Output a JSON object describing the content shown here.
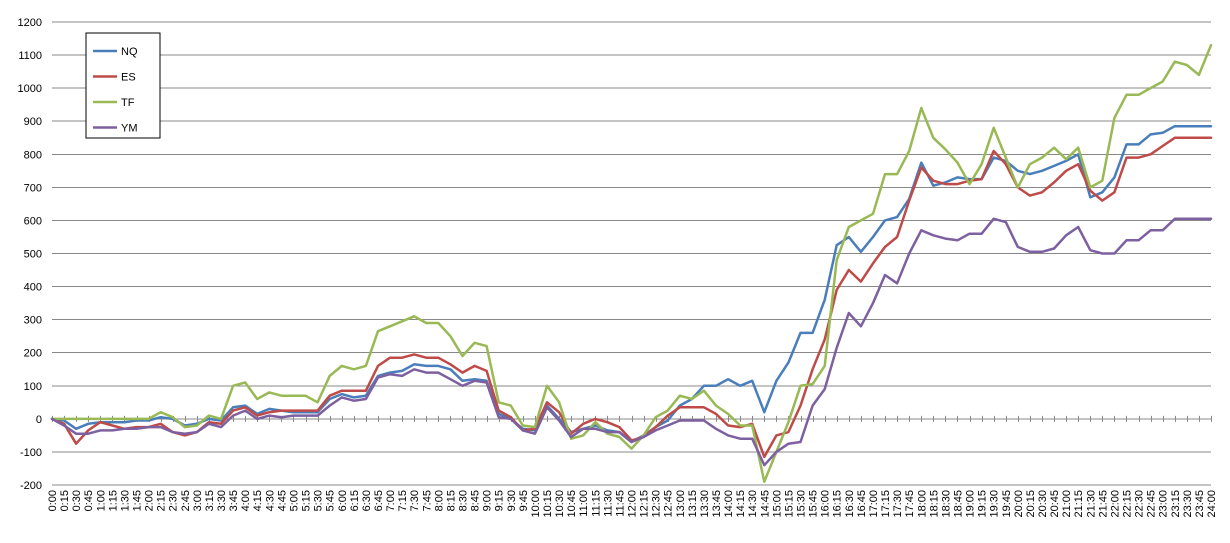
{
  "chart_data": {
    "type": "line",
    "title": "",
    "xlabel": "",
    "ylabel": "",
    "ylim": [
      -200,
      1200
    ],
    "y_ticks": [
      -200,
      -100,
      0,
      100,
      200,
      300,
      400,
      500,
      600,
      700,
      800,
      900,
      1000,
      1100,
      1200
    ],
    "grid": "horizontal",
    "legend": "top-left",
    "categories": [
      "0:00",
      "0:15",
      "0:30",
      "0:45",
      "1:00",
      "1:15",
      "1:30",
      "1:45",
      "2:00",
      "2:15",
      "2:30",
      "2:45",
      "3:00",
      "3:15",
      "3:30",
      "3:45",
      "4:00",
      "4:15",
      "4:30",
      "4:45",
      "5:00",
      "5:15",
      "5:30",
      "5:45",
      "6:00",
      "6:15",
      "6:30",
      "6:45",
      "7:00",
      "7:15",
      "7:30",
      "7:45",
      "8:00",
      "8:15",
      "8:30",
      "8:45",
      "9:00",
      "9:15",
      "9:30",
      "9:45",
      "10:00",
      "10:15",
      "10:30",
      "10:45",
      "11:00",
      "11:15",
      "11:30",
      "11:45",
      "12:00",
      "12:15",
      "12:30",
      "12:45",
      "13:00",
      "13:15",
      "13:30",
      "13:45",
      "14:00",
      "14:15",
      "14:30",
      "14:45",
      "15:00",
      "15:15",
      "15:30",
      "15:45",
      "16:00",
      "16:15",
      "16:30",
      "16:45",
      "17:00",
      "17:15",
      "17:30",
      "17:45",
      "18:00",
      "18:15",
      "18:30",
      "18:45",
      "19:00",
      "19:15",
      "19:30",
      "19:45",
      "20:00",
      "20:15",
      "20:30",
      "20:45",
      "21:00",
      "21:15",
      "21:30",
      "21:45",
      "22:00",
      "22:15",
      "22:30",
      "22:45",
      "23:00",
      "23:15",
      "23:30",
      "23:45",
      "24:00"
    ],
    "series": [
      {
        "name": "NQ",
        "color": "#4a7ebb",
        "values": [
          0,
          -5,
          -30,
          -15,
          -10,
          -10,
          -10,
          -5,
          -5,
          5,
          0,
          -20,
          -15,
          0,
          -5,
          35,
          40,
          15,
          30,
          25,
          20,
          20,
          20,
          60,
          75,
          65,
          70,
          130,
          140,
          145,
          165,
          160,
          160,
          150,
          115,
          120,
          115,
          15,
          0,
          -30,
          -35,
          40,
          0,
          -40,
          -30,
          -20,
          -35,
          -40,
          -70,
          -50,
          -25,
          -5,
          40,
          60,
          100,
          100,
          120,
          100,
          115,
          20,
          115,
          170,
          260,
          260,
          360,
          525,
          550,
          505,
          550,
          600,
          610,
          665,
          775,
          705,
          715,
          730,
          725,
          725,
          790,
          780,
          750,
          740,
          750,
          765,
          780,
          800,
          670,
          685,
          730,
          830,
          830,
          860,
          865,
          885,
          885,
          885,
          885
        ]
      },
      {
        "name": "ES",
        "color": "#be4b48",
        "values": [
          0,
          -15,
          -75,
          -35,
          -10,
          -20,
          -30,
          -25,
          -25,
          -15,
          -40,
          -50,
          -40,
          -10,
          -15,
          25,
          35,
          10,
          20,
          25,
          25,
          25,
          25,
          70,
          85,
          85,
          85,
          160,
          185,
          185,
          195,
          185,
          185,
          165,
          140,
          160,
          145,
          25,
          5,
          -35,
          -30,
          50,
          20,
          -45,
          -15,
          0,
          -10,
          -25,
          -65,
          -55,
          -25,
          10,
          35,
          35,
          35,
          15,
          -20,
          -25,
          -15,
          -115,
          -50,
          -40,
          40,
          150,
          240,
          390,
          450,
          415,
          470,
          520,
          550,
          660,
          760,
          720,
          710,
          710,
          720,
          725,
          810,
          770,
          700,
          675,
          685,
          715,
          750,
          770,
          690,
          660,
          685,
          790,
          790,
          800,
          825,
          850,
          850,
          850,
          850
        ]
      },
      {
        "name": "TF",
        "color": "#98b954",
        "values": [
          0,
          0,
          0,
          0,
          0,
          0,
          0,
          0,
          0,
          20,
          5,
          -25,
          -20,
          10,
          0,
          100,
          110,
          60,
          80,
          70,
          70,
          70,
          50,
          130,
          160,
          150,
          160,
          265,
          280,
          295,
          310,
          290,
          290,
          250,
          190,
          230,
          220,
          50,
          40,
          -20,
          -25,
          100,
          50,
          -60,
          -50,
          -10,
          -45,
          -55,
          -90,
          -50,
          5,
          25,
          70,
          60,
          85,
          40,
          15,
          -20,
          -20,
          -190,
          -100,
          -10,
          100,
          105,
          160,
          480,
          580,
          600,
          620,
          740,
          740,
          810,
          940,
          850,
          815,
          775,
          710,
          770,
          880,
          790,
          700,
          770,
          790,
          820,
          785,
          820,
          700,
          720,
          910,
          980,
          980,
          1000,
          1020,
          1080,
          1070,
          1040,
          1130
        ]
      },
      {
        "name": "YM",
        "color": "#7d60a0",
        "values": [
          0,
          -20,
          -45,
          -45,
          -35,
          -35,
          -30,
          -30,
          -25,
          -25,
          -40,
          -45,
          -40,
          -15,
          -25,
          10,
          25,
          0,
          10,
          5,
          10,
          10,
          10,
          40,
          65,
          55,
          60,
          125,
          135,
          130,
          150,
          140,
          140,
          120,
          100,
          115,
          110,
          5,
          0,
          -35,
          -45,
          35,
          -5,
          -55,
          -30,
          -30,
          -40,
          -40,
          -70,
          -55,
          -35,
          -20,
          -5,
          -5,
          -5,
          -30,
          -50,
          -60,
          -60,
          -140,
          -100,
          -75,
          -70,
          40,
          90,
          215,
          320,
          280,
          350,
          435,
          410,
          500,
          570,
          555,
          545,
          540,
          560,
          560,
          605,
          595,
          520,
          505,
          505,
          515,
          555,
          580,
          510,
          500,
          500,
          540,
          540,
          570,
          570,
          605,
          605,
          605,
          605
        ]
      }
    ]
  }
}
